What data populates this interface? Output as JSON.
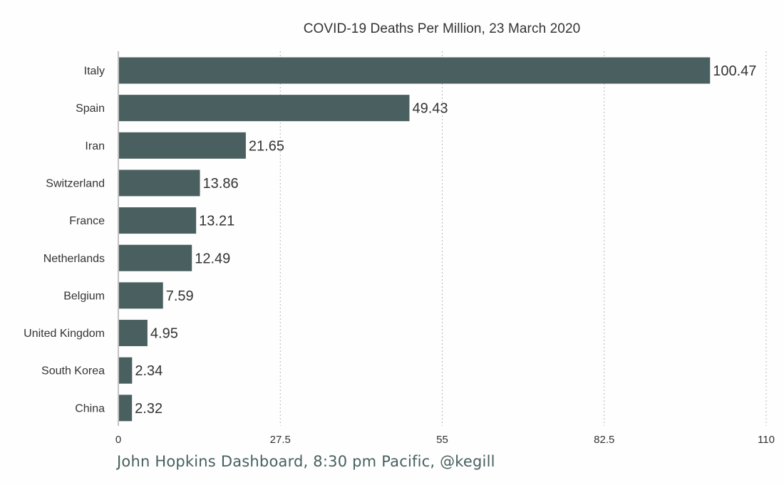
{
  "chart_data": {
    "type": "bar",
    "orientation": "horizontal",
    "title": "COVID-19 Deaths Per Million, 23 March 2020",
    "categories": [
      "Italy",
      "Spain",
      "Iran",
      "Switzerland",
      "France",
      "Netherlands",
      "Belgium",
      "United Kingdom",
      "South Korea",
      "China"
    ],
    "values": [
      100.47,
      49.43,
      21.65,
      13.86,
      13.21,
      12.49,
      7.59,
      4.95,
      2.34,
      2.32
    ],
    "value_labels": [
      "100.47",
      "49.43",
      "21.65",
      "13.86",
      "13.21",
      "12.49",
      "7.59",
      "4.95",
      "2.34",
      "2.32"
    ],
    "xlim": [
      0,
      110
    ],
    "xticks": [
      0,
      27.5,
      55,
      82.5,
      110
    ],
    "xtick_labels": [
      "0",
      "27.5",
      "55",
      "82.5",
      "110"
    ],
    "grid": "vertical dotted",
    "bar_color": "#4a5f5f",
    "source_note": "John Hopkins Dashboard, 8:30 pm Pacific, @kegill"
  }
}
